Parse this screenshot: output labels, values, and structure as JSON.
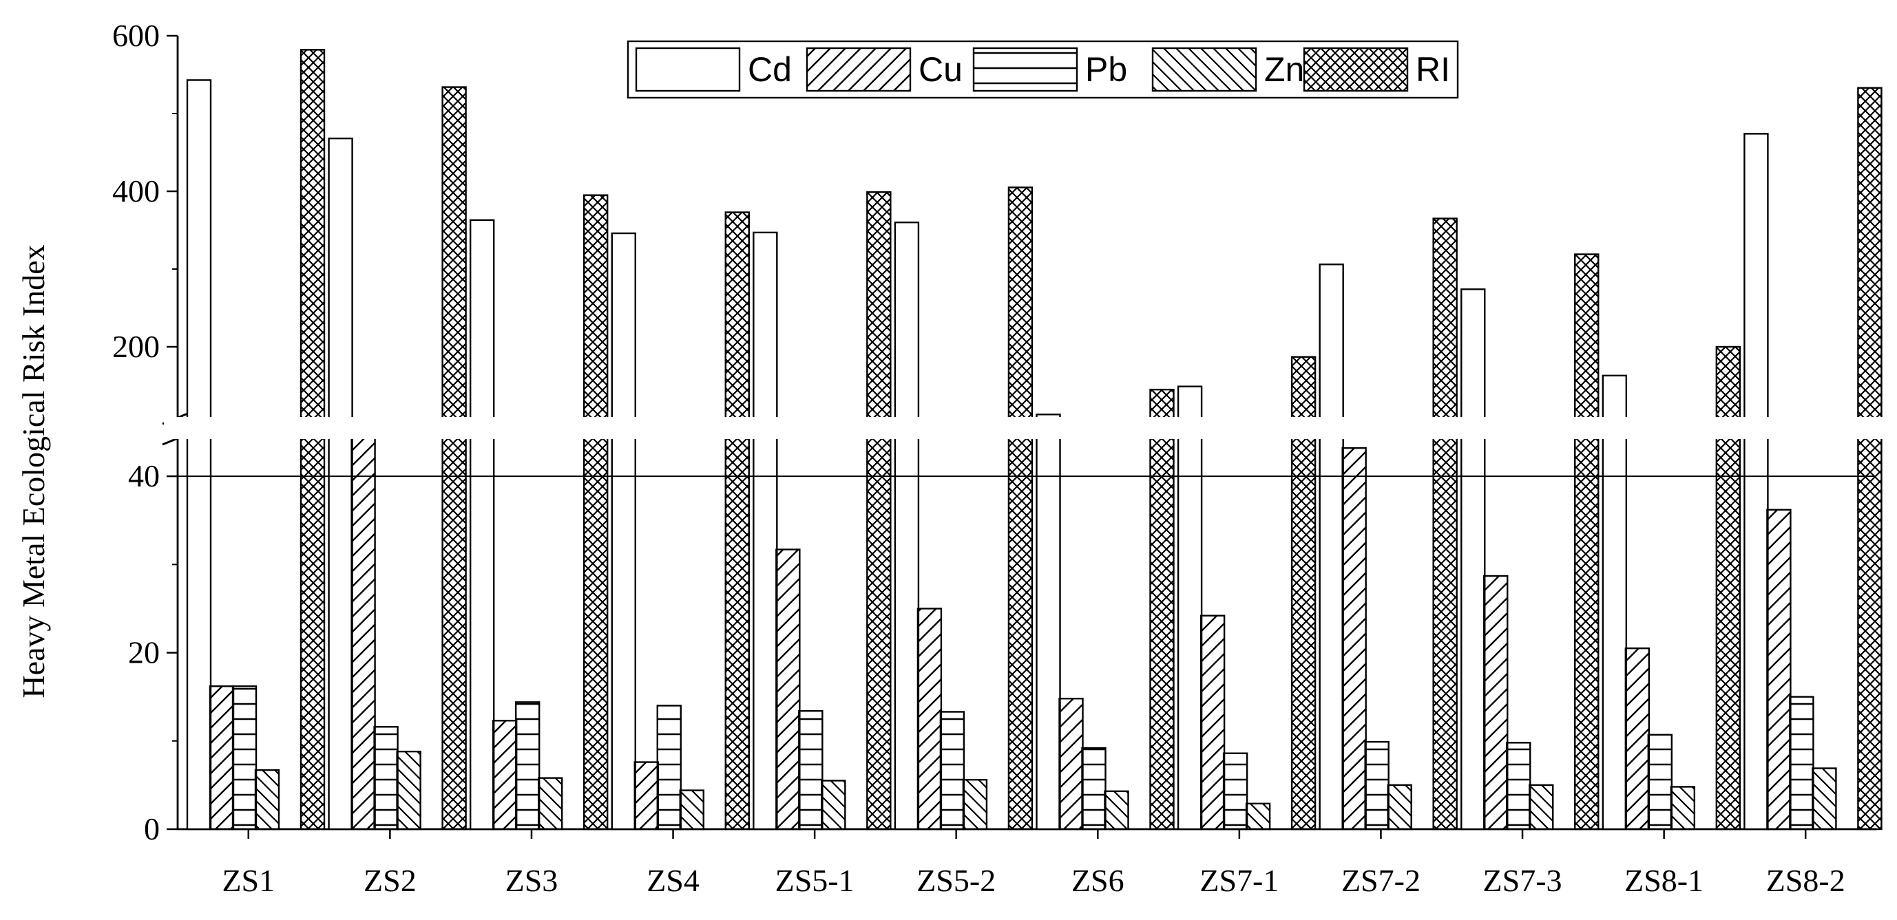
{
  "chart_data": {
    "type": "bar",
    "title": "",
    "xlabel": "",
    "ylabel": "Heavy Metal Ecological Risk Index",
    "categories": [
      "ZS1",
      "ZS2",
      "ZS3",
      "ZS4",
      "ZS5-1",
      "ZS5-2",
      "ZS6",
      "ZS7-1",
      "ZS7-2",
      "ZS7-3",
      "ZS8-1",
      "ZS8-2"
    ],
    "series": [
      {
        "name": "Cd",
        "pattern": "none",
        "values": [
          543,
          468,
          363,
          346,
          347,
          360,
          113,
          149,
          306,
          274,
          163,
          474
        ]
      },
      {
        "name": "Cu",
        "pattern": "diagonal",
        "values": [
          16.2,
          45.5,
          12.3,
          7.6,
          31.7,
          25.0,
          14.8,
          24.2,
          43.2,
          28.7,
          20.5,
          36.2
        ]
      },
      {
        "name": "Pb",
        "pattern": "horizontal",
        "values": [
          16.2,
          11.6,
          14.4,
          14.0,
          13.4,
          13.3,
          9.2,
          8.6,
          9.9,
          9.8,
          10.7,
          15.0
        ]
      },
      {
        "name": "Zn",
        "pattern": "backslash",
        "values": [
          6.7,
          8.8,
          5.8,
          4.4,
          5.5,
          5.6,
          4.3,
          2.9,
          5.0,
          5.0,
          4.8,
          6.9
        ]
      },
      {
        "name": "RI",
        "pattern": "crosshatch",
        "values": [
          582,
          534,
          395,
          373,
          399,
          405,
          145,
          187,
          365,
          319,
          200,
          533
        ]
      }
    ],
    "y_axis": {
      "broken": true,
      "lower_segment": {
        "range": [
          0,
          45
        ],
        "ticks": [
          0,
          20,
          40
        ]
      },
      "upper_segment": {
        "range": [
          100,
          600
        ],
        "ticks": [
          200,
          400,
          600
        ]
      }
    },
    "reference_line": {
      "y": 40
    },
    "legend": {
      "position": "top-center",
      "orientation": "horizontal"
    },
    "grid": false,
    "colors": {
      "bar_stroke": "#000000",
      "bar_fill": "#ffffff",
      "axis": "#000000"
    }
  }
}
